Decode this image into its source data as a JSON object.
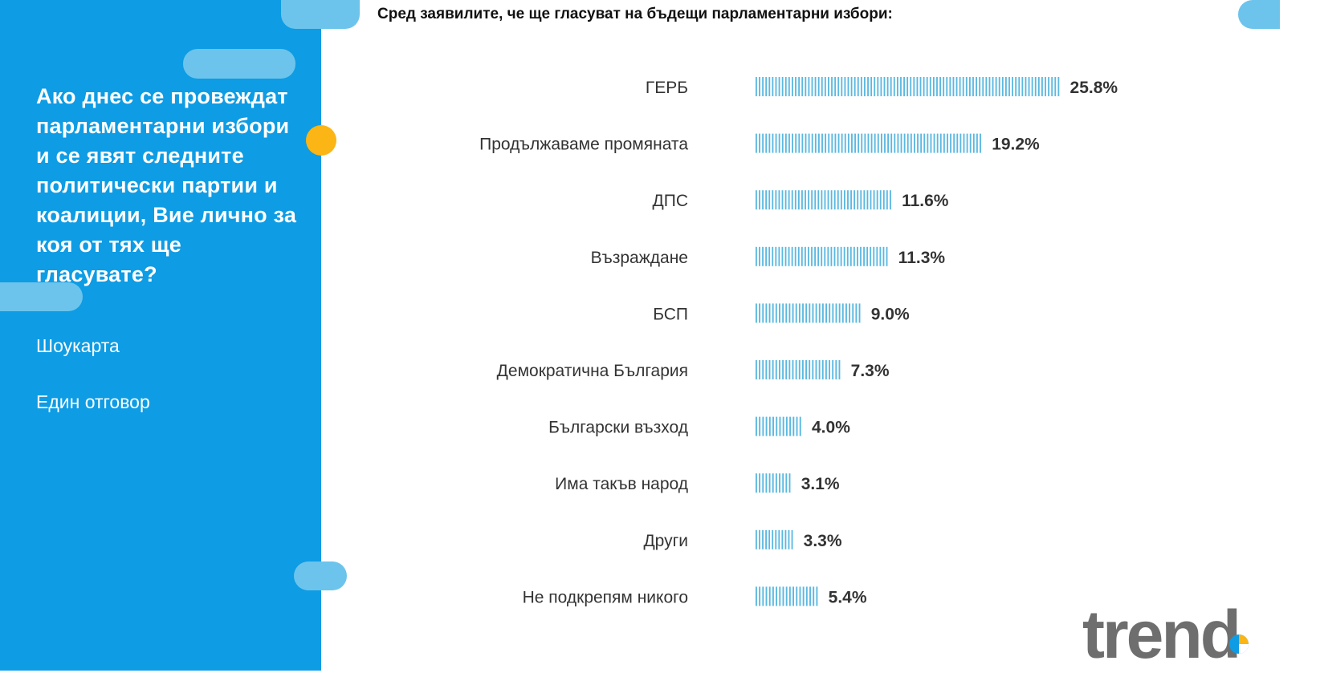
{
  "sidebar": {
    "question": "Ако днес се провеждат парламентарни избори и се явят следните политически партии и коалиции, Вие лично за коя от тях ще гласувате?",
    "meta_1": "Шоукарта",
    "meta_2": "Един отговор"
  },
  "colors": {
    "sidebar_blue": "#0E9CE4",
    "pill_light_blue": "#6CC4EC",
    "accent_yellow": "#FBB514",
    "bar_blue": "#5AB8E0",
    "logo_gray": "#6E6E6E"
  },
  "logo": {
    "text": "trend",
    "icon": "trend-pie-icon"
  },
  "chart_data": {
    "type": "bar",
    "orientation": "horizontal",
    "title": "Сред заявилите, че ще гласуват на бъдещи парламентарни избори:",
    "categories": [
      "ГЕРБ",
      "Продължаваме промяната",
      "ДПС",
      "Възраждане",
      "БСП",
      "Демократична България",
      "Български възход",
      "Има такъв народ",
      "Други",
      "Не подкрепям никого"
    ],
    "values": [
      25.8,
      19.2,
      11.6,
      11.3,
      9.0,
      7.3,
      4.0,
      3.1,
      3.3,
      5.4
    ],
    "value_labels": [
      "25.8%",
      "19.2%",
      "11.6%",
      "11.3%",
      "9.0%",
      "7.3%",
      "4.0%",
      "3.1%",
      "3.3%",
      "5.4%"
    ],
    "unit": "%",
    "grid": false,
    "legend": "none"
  }
}
